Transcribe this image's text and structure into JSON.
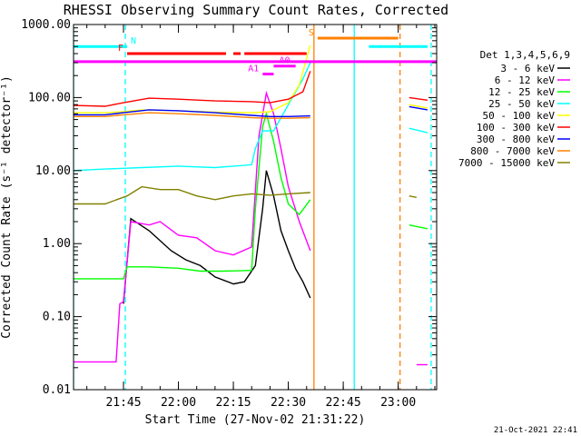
{
  "chart_data": {
    "type": "line",
    "title": "RHESSI Observing Summary Count Rates, Corrected",
    "xlabel": "Start Time (27-Nov-02 21:31:22)",
    "ylabel": "Corrected Count Rate (s⁻¹ detector⁻¹)",
    "yscale": "log",
    "ylim": [
      0.01,
      1000
    ],
    "xlim": [
      "21:31:22",
      "23:10:30"
    ],
    "x_ticks": [
      "21:45",
      "22:00",
      "22:15",
      "22:30",
      "22:45",
      "23:00"
    ],
    "y_ticks": [
      "0.01",
      "0.10",
      "1.00",
      "10.00",
      "100.00",
      "1000.00"
    ],
    "legend_title": "Det 1,3,4,5,6,9",
    "legend_placement": "right",
    "timestamp": "21-Oct-2021 22:41",
    "series": [
      {
        "name": "3 - 6 keV",
        "color": "#000000",
        "points": [
          [
            "21:45",
            0.15
          ],
          [
            "21:47",
            2.2
          ],
          [
            "21:52",
            1.5
          ],
          [
            "21:58",
            0.8
          ],
          [
            "22:02",
            0.6
          ],
          [
            "22:06",
            0.5
          ],
          [
            "22:10",
            0.35
          ],
          [
            "22:15",
            0.28
          ],
          [
            "22:18",
            0.3
          ],
          [
            "22:21",
            0.5
          ],
          [
            "22:23",
            3.0
          ],
          [
            "22:24",
            10.0
          ],
          [
            "22:26",
            4.5
          ],
          [
            "22:28",
            1.5
          ],
          [
            "22:30",
            0.8
          ],
          [
            "22:32",
            0.45
          ],
          [
            "22:34",
            0.3
          ],
          [
            "22:36",
            0.18
          ]
        ]
      },
      {
        "name": "6 - 12 keV",
        "color": "#ff00ff",
        "points": [
          [
            "21:31:22",
            0.024
          ],
          [
            "21:43",
            0.024
          ],
          [
            "21:44",
            0.15
          ],
          [
            "21:45",
            0.16
          ],
          [
            "21:47",
            2.0
          ],
          [
            "21:52",
            1.8
          ],
          [
            "21:55",
            2.0
          ],
          [
            "22:00",
            1.3
          ],
          [
            "22:05",
            1.2
          ],
          [
            "22:10",
            0.8
          ],
          [
            "22:15",
            0.7
          ],
          [
            "22:20",
            0.9
          ],
          [
            "22:22",
            30
          ],
          [
            "22:24",
            115
          ],
          [
            "22:26",
            60
          ],
          [
            "22:28",
            20
          ],
          [
            "22:30",
            6
          ],
          [
            "22:33",
            2.0
          ],
          [
            "22:36",
            0.8
          ]
        ]
      },
      {
        "name": "12 - 25 keV",
        "color": "#00ff00",
        "points": [
          [
            "21:31:22",
            0.33
          ],
          [
            "21:40",
            0.33
          ],
          [
            "21:45",
            0.33
          ],
          [
            "21:46",
            0.48
          ],
          [
            "21:52",
            0.48
          ],
          [
            "22:00",
            0.46
          ],
          [
            "22:06",
            0.42
          ],
          [
            "22:12",
            0.42
          ],
          [
            "22:20",
            0.43
          ],
          [
            "22:21",
            3
          ],
          [
            "22:23",
            40
          ],
          [
            "22:24",
            60
          ],
          [
            "22:26",
            25
          ],
          [
            "22:28",
            8
          ],
          [
            "22:30",
            3.5
          ],
          [
            "22:33",
            2.5
          ],
          [
            "22:36",
            4
          ]
        ]
      },
      {
        "name": "25 - 50 keV",
        "color": "#00ffff",
        "points": [
          [
            "21:31:22",
            10
          ],
          [
            "21:40",
            10.5
          ],
          [
            "21:50",
            11
          ],
          [
            "22:00",
            11.5
          ],
          [
            "22:10",
            11
          ],
          [
            "22:20",
            12
          ],
          [
            "22:21",
            20
          ],
          [
            "22:23",
            35
          ],
          [
            "22:26",
            35
          ],
          [
            "22:30",
            80
          ],
          [
            "22:34",
            180
          ],
          [
            "22:36",
            300
          ]
        ]
      },
      {
        "name": "50 - 100 keV",
        "color": "#ffff00",
        "points": [
          [
            "21:31:22",
            62
          ],
          [
            "21:40",
            62
          ],
          [
            "21:45",
            64
          ],
          [
            "21:50",
            68
          ],
          [
            "22:00",
            66
          ],
          [
            "22:10",
            63
          ],
          [
            "22:20",
            62
          ],
          [
            "22:25",
            64
          ],
          [
            "22:30",
            85
          ],
          [
            "22:33",
            150
          ],
          [
            "22:36",
            520
          ]
        ]
      },
      {
        "name": "100 - 300 keV",
        "color": "#ff0000",
        "points": [
          [
            "21:31:22",
            78
          ],
          [
            "21:40",
            76
          ],
          [
            "21:45",
            85
          ],
          [
            "21:52",
            98
          ],
          [
            "22:00",
            95
          ],
          [
            "22:10",
            90
          ],
          [
            "22:20",
            88
          ],
          [
            "22:25",
            85
          ],
          [
            "22:30",
            95
          ],
          [
            "22:34",
            120
          ],
          [
            "22:36",
            230
          ]
        ]
      },
      {
        "name": "300 - 800 keV",
        "color": "#0000ff",
        "points": [
          [
            "21:31:22",
            58
          ],
          [
            "21:40",
            58
          ],
          [
            "21:45",
            62
          ],
          [
            "21:52",
            68
          ],
          [
            "22:00",
            66
          ],
          [
            "22:10",
            62
          ],
          [
            "22:20",
            57
          ],
          [
            "22:25",
            55
          ],
          [
            "22:30",
            55
          ],
          [
            "22:36",
            56
          ]
        ]
      },
      {
        "name": "800 - 7000 keV",
        "color": "#ff8000",
        "points": [
          [
            "21:31:22",
            55
          ],
          [
            "21:40",
            55
          ],
          [
            "21:45",
            58
          ],
          [
            "21:52",
            62
          ],
          [
            "22:00",
            60
          ],
          [
            "22:10",
            57
          ],
          [
            "22:20",
            53
          ],
          [
            "22:25",
            52
          ],
          [
            "22:30",
            52
          ],
          [
            "22:36",
            53
          ]
        ]
      },
      {
        "name": "7000 - 15000 keV",
        "color": "#808000",
        "points": [
          [
            "21:31:22",
            3.5
          ],
          [
            "21:40",
            3.5
          ],
          [
            "21:46",
            4.5
          ],
          [
            "21:50",
            6
          ],
          [
            "21:55",
            5.5
          ],
          [
            "22:00",
            5.5
          ],
          [
            "22:05",
            4.5
          ],
          [
            "22:10",
            4
          ],
          [
            "22:15",
            4.5
          ],
          [
            "22:20",
            4.8
          ],
          [
            "22:25",
            4.6
          ],
          [
            "22:30",
            4.8
          ],
          [
            "22:36",
            5
          ]
        ]
      }
    ],
    "post_gap_series": [
      {
        "color": "#ff0000",
        "points": [
          [
            "23:03",
            100
          ],
          [
            "23:08",
            92
          ]
        ]
      },
      {
        "color": "#0000ff",
        "points": [
          [
            "23:03",
            75
          ],
          [
            "23:08",
            68
          ]
        ]
      },
      {
        "color": "#ffff00",
        "points": [
          [
            "23:03",
            80
          ],
          [
            "23:08",
            72
          ]
        ]
      },
      {
        "color": "#00ffff",
        "points": [
          [
            "23:03",
            38
          ],
          [
            "23:08",
            33
          ]
        ]
      },
      {
        "color": "#808000",
        "points": [
          [
            "23:03",
            4.5
          ],
          [
            "23:05",
            4.3
          ]
        ]
      },
      {
        "color": "#00ff00",
        "points": [
          [
            "23:03",
            1.8
          ],
          [
            "23:08",
            1.6
          ]
        ]
      },
      {
        "color": "#ff00ff",
        "points": [
          [
            "23:05",
            0.022
          ],
          [
            "23:08",
            0.022
          ]
        ]
      }
    ],
    "flag_bars": [
      {
        "label": "N",
        "color": "#00ffff",
        "y": 500,
        "segments": [
          [
            "21:31:22",
            "21:46"
          ],
          [
            "22:52",
            "23:08"
          ]
        ]
      },
      {
        "label": "F",
        "color": "#ff0000",
        "y": 400,
        "segments": [
          [
            "21:46",
            "22:13"
          ],
          [
            "22:15",
            "22:17"
          ],
          [
            "22:18",
            "22:35"
          ]
        ]
      },
      {
        "label": "S",
        "color": "#ff8000",
        "y": 650,
        "segments": [
          [
            "22:38",
            "23:00"
          ]
        ]
      },
      {
        "label": "",
        "color": "#ff00ff",
        "y": 310,
        "segments": [
          [
            "21:31:22",
            "23:10:30"
          ]
        ]
      },
      {
        "label": "A0",
        "color": "#ff00ff",
        "y": 270,
        "segments": [
          [
            "22:26",
            "22:32"
          ]
        ]
      },
      {
        "label": "A1",
        "color": "#ff00ff",
        "y": 210,
        "segments": [
          [
            "22:23",
            "22:26"
          ]
        ]
      }
    ],
    "vertical_markers": [
      {
        "x": "21:31:22",
        "color": "#00ffff",
        "style": "solid"
      },
      {
        "x": "21:45:30",
        "color": "#00ffff",
        "style": "dashed"
      },
      {
        "x": "22:37",
        "color": "#ff8000",
        "style": "solid"
      },
      {
        "x": "22:48",
        "color": "#00ffff",
        "style": "solid"
      },
      {
        "x": "23:00:30",
        "color": "#ff8000",
        "style": "dashed"
      },
      {
        "x": "23:09",
        "color": "#00ffff",
        "style": "dashed"
      }
    ]
  }
}
